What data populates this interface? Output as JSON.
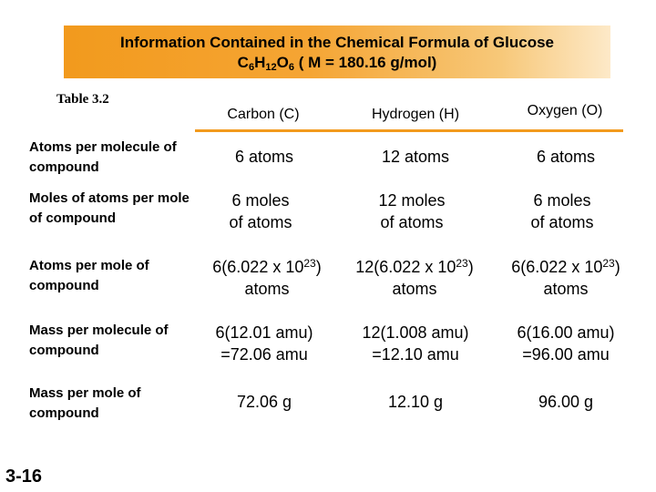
{
  "slide": {
    "title_line1": "Information Contained in the Chemical Formula of Glucose",
    "formula": {
      "c": "C",
      "c_sub": "6",
      "h": "H",
      "h_sub": "12",
      "o": "O",
      "o_sub": "6",
      "molar_mass": " ( M = 180.16 g/mol)"
    },
    "table_caption": "Table 3.2",
    "slide_number": "3-16",
    "accent_color": "#f29a1d"
  },
  "table": {
    "columns": [
      "Carbon (C)",
      "Hydrogen (H)",
      "Oxygen (O)"
    ],
    "rows": [
      {
        "label": "Atoms per molecule of compound",
        "cells": [
          "6 atoms",
          "12 atoms",
          "6 atoms"
        ]
      },
      {
        "label": "Moles of atoms per mole of compound",
        "cells": [
          {
            "l1": "6 moles",
            "l2": "of atoms"
          },
          {
            "l1": "12 moles",
            "l2": "of atoms"
          },
          {
            "l1": "6 moles",
            "l2": "of atoms"
          }
        ]
      },
      {
        "label": "Atoms per mole of compound",
        "cells": [
          {
            "pre": "6(6.022 x 10",
            "exp": "23",
            "post": ")",
            "l2": "atoms"
          },
          {
            "pre": "12(6.022 x 10",
            "exp": "23",
            "post": ")",
            "l2": "atoms"
          },
          {
            "pre": "6(6.022 x 10",
            "exp": "23",
            "post": ")",
            "l2": "atoms"
          }
        ]
      },
      {
        "label": "Mass per molecule of compound",
        "cells": [
          {
            "l1": "6(12.01 amu)",
            "l2": "=72.06 amu"
          },
          {
            "l1": "12(1.008 amu)",
            "l2": "=12.10 amu"
          },
          {
            "l1": "6(16.00 amu)",
            "l2": "=96.00 amu"
          }
        ]
      },
      {
        "label": "Mass per mole of compound",
        "cells": [
          "72.06 g",
          "12.10 g",
          "96.00 g"
        ]
      }
    ]
  }
}
